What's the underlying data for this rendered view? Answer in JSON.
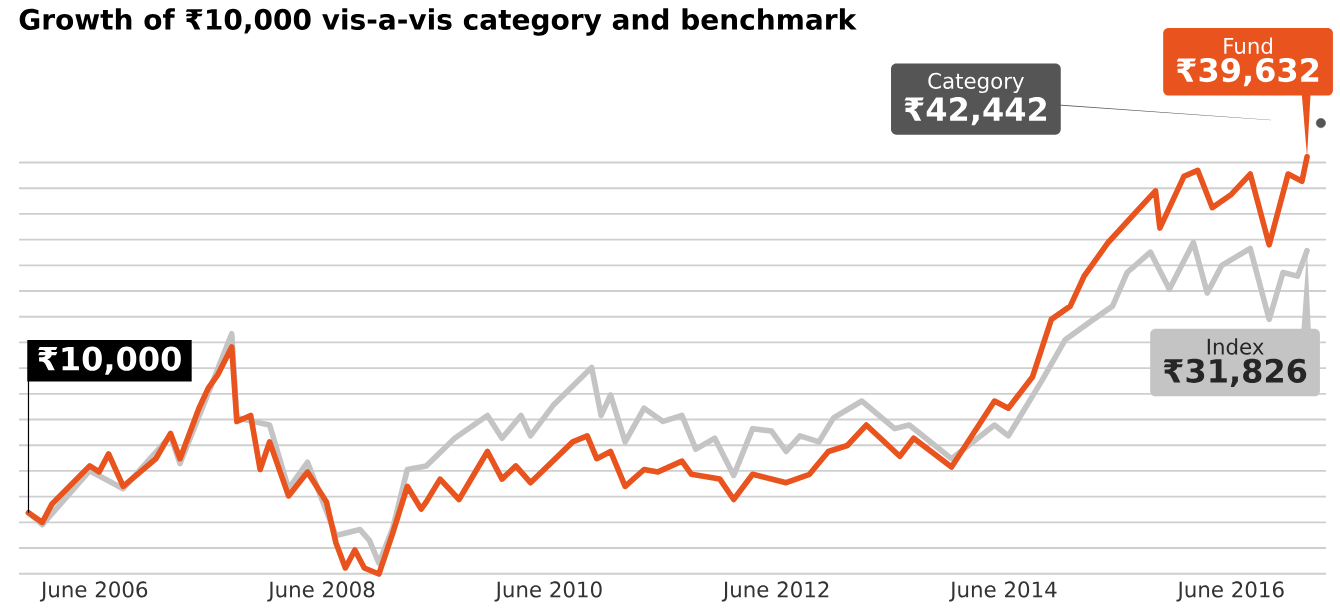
{
  "chart_data": {
    "type": "line",
    "title": "Growth of ₹10,000 vis-a-vis category and benchmark",
    "xlim": [
      "2005-10",
      "2017-04"
    ],
    "xticks": [
      {
        "value": "2006-06",
        "label": "June 2006"
      },
      {
        "value": "2008-06",
        "label": "June 2008"
      },
      {
        "value": "2010-06",
        "label": "June 2010"
      },
      {
        "value": "2012-06",
        "label": "June 2012"
      },
      {
        "value": "2014-06",
        "label": "June 2014"
      },
      {
        "value": "2016-06",
        "label": "June 2016"
      }
    ],
    "yticks": [
      {
        "value": 4920,
        "label": null
      },
      {
        "value": 7060,
        "label": null
      },
      {
        "value": 9200,
        "label": null
      },
      {
        "value": 11340,
        "label": null
      },
      {
        "value": 13480,
        "label": null
      },
      {
        "value": 15620,
        "label": null
      },
      {
        "value": 17760,
        "label": null
      },
      {
        "value": 19900,
        "label": null
      },
      {
        "value": 22040,
        "label": null
      },
      {
        "value": 24180,
        "label": null
      },
      {
        "value": 26320,
        "label": null
      },
      {
        "value": 28460,
        "label": null
      },
      {
        "value": 30600,
        "label": null
      },
      {
        "value": 32740,
        "label": null
      },
      {
        "value": 34880,
        "label": null
      },
      {
        "value": 37020,
        "label": null
      },
      {
        "value": 39160,
        "label": null
      }
    ],
    "tick_labels": "x",
    "grid": "y",
    "series": [
      {
        "name": "Index",
        "color": "#c4c4c4",
        "x": [
          "2005-11-01",
          "2005-12-15",
          "2006-05-15",
          "2006-09-01",
          "2007-02-01",
          "2007-03-01",
          "2007-06-01",
          "2007-08-15",
          "2007-09-01",
          "2007-12-15",
          "2008-02-15",
          "2008-04-15",
          "2008-07-15",
          "2008-10-01",
          "2008-11-01",
          "2008-12-01",
          "2009-01-15",
          "2009-03-01",
          "2009-05-01",
          "2009-08-01",
          "2009-11-15",
          "2010-01-01",
          "2010-03-01",
          "2010-04-01",
          "2010-06-15",
          "2010-10-15",
          "2010-11-15",
          "2010-12-15",
          "2011-02-01",
          "2011-04-01",
          "2011-06-01",
          "2011-08-01",
          "2011-09-15",
          "2011-11-15",
          "2012-01-15",
          "2012-03-15",
          "2012-05-15",
          "2012-07-01",
          "2012-08-15",
          "2012-10-15",
          "2012-12-01",
          "2013-03-01",
          "2013-06-15",
          "2013-08-01",
          "2013-12-15",
          "2014-05-01",
          "2014-06-15",
          "2014-10-01",
          "2014-12-15",
          "2015-03-15",
          "2015-05-15",
          "2015-07-01",
          "2015-09-15",
          "2015-11-15",
          "2016-02-01",
          "2016-03-15",
          "2016-05-01",
          "2016-08-01",
          "2016-10-01",
          "2016-11-15",
          "2017-01-01",
          "2017-02-01"
        ],
        "values": [
          10000,
          9000,
          13500,
          12000,
          16400,
          14100,
          20000,
          24900,
          17900,
          17300,
          12000,
          14200,
          8100,
          8600,
          7700,
          5800,
          8700,
          13600,
          13900,
          16200,
          18100,
          16200,
          18100,
          16400,
          19000,
          22100,
          18100,
          19800,
          15900,
          18700,
          17600,
          18100,
          15300,
          16200,
          13100,
          17000,
          16800,
          15100,
          16400,
          15900,
          17900,
          19300,
          17000,
          17300,
          14500,
          17300,
          16400,
          21000,
          24400,
          26100,
          27200,
          30000,
          31700,
          28600,
          32500,
          28300,
          30600,
          32000,
          26100,
          30000,
          29700,
          31826
        ],
        "value_labels": [
          null,
          null,
          null,
          null,
          null,
          null,
          null,
          null,
          null,
          null,
          null,
          null,
          null,
          null,
          null,
          null,
          null,
          null,
          null,
          null,
          null,
          null,
          null,
          null,
          null,
          null,
          null,
          null,
          null,
          null,
          null,
          null,
          null,
          null,
          null,
          null,
          null,
          null,
          null,
          null,
          null,
          null,
          null,
          null,
          null,
          null,
          null,
          null,
          null,
          null,
          null,
          null,
          null,
          null,
          null,
          null,
          null,
          null,
          null,
          null,
          null,
          "₹31,826"
        ]
      },
      {
        "name": "Fund",
        "color": "#e9531d",
        "x": [
          "2005-11-01",
          "2005-12-15",
          "2006-01-15",
          "2006-05-15",
          "2006-06-15",
          "2006-07-15",
          "2006-09-01",
          "2006-12-15",
          "2007-02-01",
          "2007-03-01",
          "2007-05-01",
          "2007-06-01",
          "2007-07-01",
          "2007-08-15",
          "2007-09-01",
          "2007-10-15",
          "2007-11-15",
          "2007-12-15",
          "2008-02-15",
          "2008-04-15",
          "2008-06-15",
          "2008-07-15",
          "2008-08-15",
          "2008-09-15",
          "2008-10-15",
          "2008-12-01",
          "2009-01-15",
          "2009-03-01",
          "2009-04-15",
          "2009-05-01",
          "2009-06-15",
          "2009-08-15",
          "2009-11-15",
          "2010-01-01",
          "2010-02-15",
          "2010-04-01",
          "2010-08-15",
          "2010-10-01",
          "2010-11-01",
          "2010-12-15",
          "2011-02-01",
          "2011-04-01",
          "2011-05-15",
          "2011-08-01",
          "2011-09-01",
          "2011-12-01",
          "2012-01-15",
          "2012-03-15",
          "2012-07-01",
          "2012-09-15",
          "2012-11-15",
          "2013-01-15",
          "2013-03-15",
          "2013-07-01",
          "2013-08-15",
          "2013-12-15",
          "2014-05-01",
          "2014-06-15",
          "2014-09-01",
          "2014-11-01",
          "2015-01-01",
          "2015-02-15",
          "2015-05-01",
          "2015-08-01",
          "2015-10-01",
          "2015-10-15",
          "2016-01-01",
          "2016-02-15",
          "2016-04-01",
          "2016-06-01",
          "2016-08-01",
          "2016-10-01",
          "2016-12-01",
          "2017-01-15",
          "2017-02-01"
        ],
        "values": [
          10000,
          9200,
          10700,
          13900,
          13400,
          14900,
          12200,
          14500,
          16600,
          14500,
          18700,
          20400,
          21500,
          23800,
          17600,
          18100,
          13600,
          15900,
          11400,
          13400,
          10900,
          7500,
          5400,
          6900,
          5400,
          4900,
          8300,
          12200,
          10300,
          10900,
          12800,
          11100,
          15100,
          12800,
          13900,
          12500,
          15900,
          16400,
          14500,
          15100,
          12200,
          13600,
          13400,
          14300,
          13200,
          12800,
          11100,
          13200,
          12500,
          13200,
          15100,
          15600,
          17300,
          14700,
          16200,
          13800,
          19300,
          18700,
          21300,
          26100,
          27200,
          29700,
          32500,
          35100,
          36800,
          33700,
          38000,
          38500,
          35400,
          36500,
          38200,
          32300,
          38200,
          37600,
          39632
        ],
        "value_labels": [
          "₹10,000",
          null,
          null,
          null,
          null,
          null,
          null,
          null,
          null,
          null,
          null,
          null,
          null,
          null,
          null,
          null,
          null,
          null,
          null,
          null,
          null,
          null,
          null,
          null,
          null,
          null,
          null,
          null,
          null,
          null,
          null,
          null,
          null,
          null,
          null,
          null,
          null,
          null,
          null,
          null,
          null,
          null,
          null,
          null,
          null,
          null,
          null,
          null,
          null,
          null,
          null,
          null,
          null,
          null,
          null,
          null,
          null,
          null,
          null,
          null,
          null,
          null,
          null,
          null,
          null,
          null,
          null,
          null,
          null,
          null,
          null,
          null,
          null,
          null,
          "₹39,632"
        ]
      },
      {
        "name": "Category",
        "type": "scatter",
        "color": "#555555",
        "x": [
          "2017-03-15"
        ],
        "values": [
          42442
        ],
        "value_labels": [
          "₹42,442"
        ]
      }
    ]
  }
}
